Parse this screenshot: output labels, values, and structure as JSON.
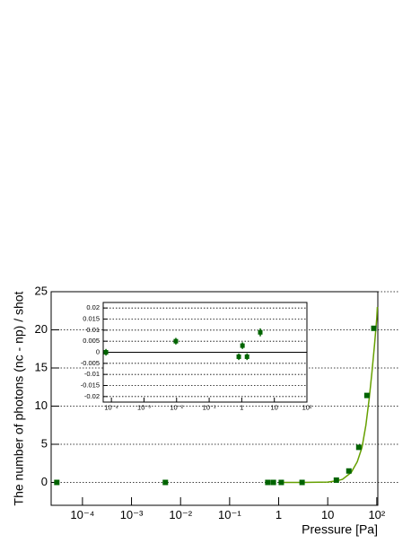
{
  "chart_data": [
    {
      "type": "scatter",
      "xlabel": "Pressure [Pa]",
      "ylabel": "The number of photons (nc - np) / shot",
      "x": [
        3e-05,
        0.0049,
        0.6,
        0.78,
        1.13,
        3.0,
        15,
        27,
        43,
        63,
        87
      ],
      "values": [
        0,
        0,
        0,
        0,
        0,
        0,
        0.3,
        1.5,
        4.6,
        11.4,
        20.2
      ],
      "color": "#006400",
      "fit": {
        "x": [
          1,
          3,
          10,
          15,
          20,
          30,
          40,
          50,
          60,
          70,
          80,
          90,
          100,
          103
        ],
        "values": [
          0,
          0,
          0.05,
          0.2,
          0.4,
          1.3,
          2.7,
          4.6,
          7.5,
          11,
          14.5,
          18,
          21.5,
          23
        ],
        "color": "#66a000"
      },
      "log_x": true,
      "xlim": [
        2.3e-05,
        105
      ],
      "ylim": [
        -3,
        25
      ],
      "xticks": [
        {
          "value": 0.0001,
          "label": "10⁻⁴"
        },
        {
          "value": 0.001,
          "label": "10⁻³"
        },
        {
          "value": 0.01,
          "label": "10⁻²"
        },
        {
          "value": 0.1,
          "label": "10⁻¹"
        },
        1,
        10,
        {
          "value": 100,
          "label": "10²"
        }
      ],
      "yticks": [
        0,
        5,
        10,
        15,
        20,
        25
      ],
      "grid": true
    },
    {
      "type": "scatter",
      "x": [
        6.8e-05,
        0.0095,
        0.81,
        1.05,
        1.45,
        3.7
      ],
      "values": [
        0,
        0.005,
        -0.002,
        0.003,
        -0.002,
        0.009
      ],
      "errors": [
        0.0015,
        0.0015,
        0.0015,
        0.0015,
        0.0015,
        0.0018
      ],
      "color": "#006400",
      "log_x": true,
      "xlim": [
        5.6e-05,
        100
      ],
      "ylim": [
        -0.0225,
        0.0225
      ],
      "xticks": [
        {
          "value": 0.0001,
          "label": "10⁻⁴"
        },
        {
          "value": 0.001,
          "label": "10⁻³"
        },
        {
          "value": 0.01,
          "label": "10⁻²"
        },
        {
          "value": 0.1,
          "label": "10⁻¹"
        },
        1,
        10,
        {
          "value": 100,
          "label": "10²"
        }
      ],
      "yticks": [
        0.02,
        0.015,
        0.01,
        0.005,
        0,
        -0.005,
        -0.01,
        -0.015,
        -0.02
      ],
      "grid": true
    }
  ]
}
